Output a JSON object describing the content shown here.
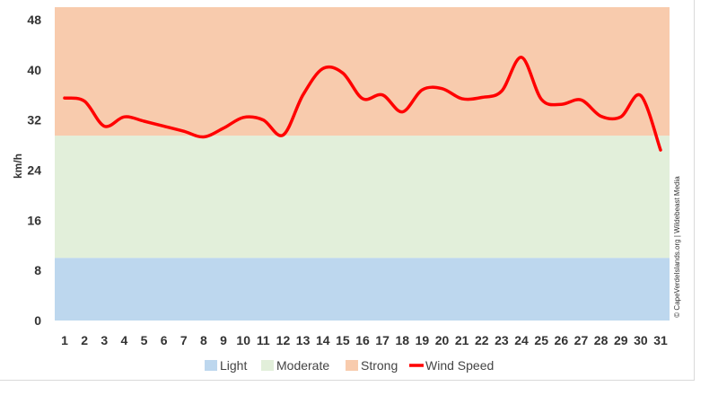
{
  "chart_data": {
    "type": "line",
    "ylabel": "km/h",
    "ylim": [
      0,
      50
    ],
    "yticks": [
      0,
      8,
      16,
      24,
      32,
      40,
      48
    ],
    "categories": [
      1,
      2,
      3,
      4,
      5,
      6,
      7,
      8,
      9,
      10,
      11,
      12,
      13,
      14,
      15,
      16,
      17,
      18,
      19,
      20,
      21,
      22,
      23,
      24,
      25,
      26,
      27,
      28,
      29,
      30,
      31
    ],
    "bands": [
      {
        "name": "Light",
        "from": 0,
        "to": 10,
        "color": "#bdd7ee"
      },
      {
        "name": "Moderate",
        "from": 10,
        "to": 29.5,
        "color": "#e2efda"
      },
      {
        "name": "Strong",
        "from": 29.5,
        "to": 50,
        "color": "#f8cbad"
      }
    ],
    "series": [
      {
        "name": "Wind Speed",
        "color": "#ff0000",
        "values": [
          35.5,
          35,
          31,
          32.5,
          31.8,
          31,
          30.2,
          29.3,
          30.7,
          32.4,
          32,
          29.6,
          36,
          40.2,
          39.5,
          35.4,
          36,
          33.3,
          36.8,
          37,
          35.4,
          35.6,
          36.6,
          42,
          35.3,
          34.5,
          35.2,
          32.6,
          32.5,
          35.9,
          27.2
        ]
      }
    ],
    "legend_position": "bottom"
  },
  "credit": "© CapeVerdeIslands.org | Wildebeast Media"
}
